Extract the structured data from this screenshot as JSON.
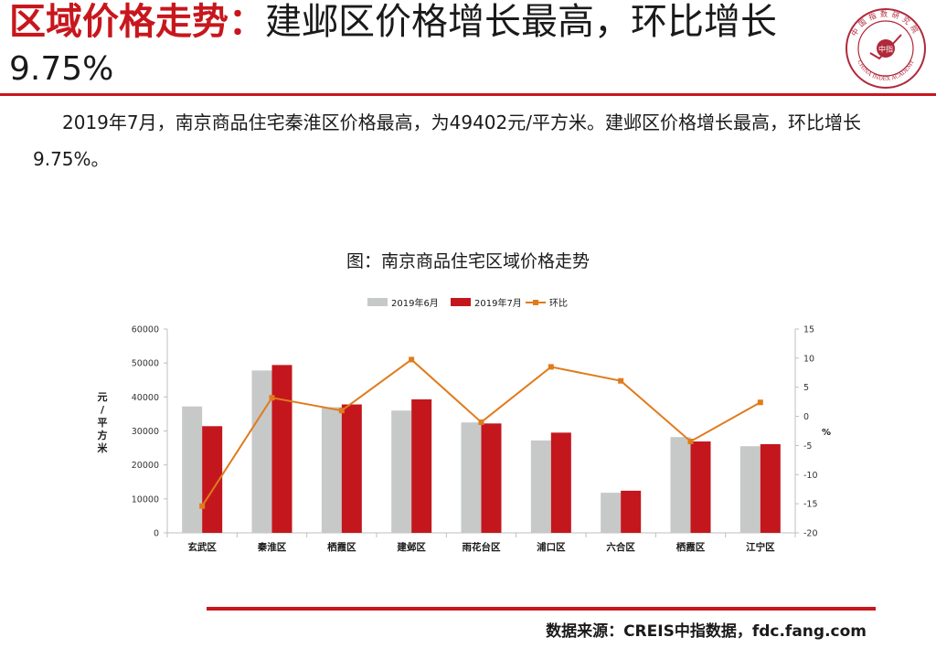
{
  "header": {
    "title_red": "区域价格走势：",
    "title_dark": "建邺区价格增长最高，环比增长",
    "title_line2": "9.75%",
    "logo_top_text": "中国指数研究院",
    "logo_center_text": "中指",
    "logo_bottom_text": "CHINA INDEX ACADEMY"
  },
  "description": {
    "text": "2019年7月，南京商品住宅秦淮区价格最高，为49402元/平方米。建邺区价格增长最高，环比增长9.75%。"
  },
  "chart_data": {
    "type": "bar",
    "title": "图：南京商品住宅区域价格走势",
    "categories": [
      "玄武区",
      "秦淮区",
      "栖霞区",
      "建邺区",
      "雨花台区",
      "浦口区",
      "六合区",
      "栖霞区",
      "江宁区"
    ],
    "series": [
      {
        "name": "2019年6月",
        "type": "bar",
        "axis": "left",
        "color": "#c6c9c8",
        "values": [
          37200,
          47800,
          37000,
          36000,
          32500,
          27200,
          11800,
          28200,
          25500
        ]
      },
      {
        "name": "2019年7月",
        "type": "bar",
        "axis": "left",
        "color": "#c3171d",
        "values": [
          31400,
          49402,
          37800,
          39300,
          32200,
          29500,
          12400,
          26900,
          26100
        ]
      },
      {
        "name": "环比",
        "type": "line",
        "axis": "right",
        "color": "#e07b1c",
        "values": [
          -15.4,
          3.2,
          1.0,
          9.75,
          -1.0,
          8.5,
          6.1,
          -4.3,
          2.4
        ]
      }
    ],
    "ylabel": "元/平方米",
    "ylim": [
      0,
      60000
    ],
    "yticks": [
      "0",
      "10000",
      "20000",
      "30000",
      "40000",
      "50000",
      "60000"
    ],
    "y2label": "%",
    "y2lim": [
      -20,
      15
    ],
    "y2ticks": [
      "-20",
      "-15",
      "-10",
      "-5",
      "0",
      "5",
      "10",
      "15"
    ],
    "legend_position": "top",
    "grid": false
  },
  "footer": {
    "source": "数据来源：CREIS中指数据，fdc.fang.com"
  }
}
